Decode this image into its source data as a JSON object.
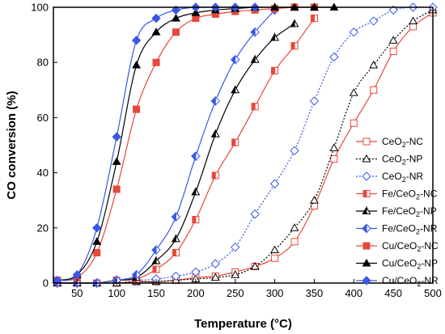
{
  "chart_data": {
    "type": "line",
    "xlabel": "Temperature (°C)",
    "ylabel": "CO conversion (%)",
    "xlim": [
      20,
      500
    ],
    "ylim": [
      0,
      100
    ],
    "xticks": [
      50,
      100,
      150,
      200,
      250,
      300,
      350,
      400,
      450,
      500
    ],
    "yticks": [
      0,
      20,
      40,
      60,
      80,
      100
    ],
    "grid": false,
    "legend_position": "right",
    "series": [
      {
        "name": "CeO2-NC",
        "label_parts": [
          "CeO",
          "2",
          "-NC"
        ],
        "color": "#e8473a",
        "marker": "square",
        "filled": false,
        "line": "solid",
        "x": [
          25,
          50,
          75,
          100,
          125,
          150,
          175,
          200,
          225,
          250,
          275,
          300,
          325,
          350,
          375,
          400,
          425,
          450,
          475,
          500
        ],
        "y": [
          0,
          0,
          0,
          0,
          0.5,
          0.5,
          1,
          2,
          2.5,
          4,
          6,
          9,
          15,
          28,
          45,
          58,
          70,
          84,
          93,
          98
        ]
      },
      {
        "name": "CeO2-NP",
        "label_parts": [
          "CeO",
          "2",
          "-NP"
        ],
        "color": "#000000",
        "marker": "triangle",
        "filled": false,
        "line": "dotted",
        "x": [
          25,
          50,
          75,
          100,
          125,
          150,
          175,
          200,
          225,
          250,
          275,
          300,
          325,
          350,
          375,
          400,
          425,
          450,
          475,
          500
        ],
        "y": [
          0,
          0,
          0,
          0,
          0.5,
          0.5,
          1,
          1.5,
          2,
          3,
          6,
          12,
          20,
          30,
          49,
          69,
          79,
          88,
          95,
          99
        ]
      },
      {
        "name": "CeO2-NR",
        "label_parts": [
          "CeO",
          "2",
          "-NR"
        ],
        "color": "#3a57e8",
        "marker": "diamond",
        "filled": false,
        "line": "dotted",
        "x": [
          25,
          50,
          75,
          100,
          125,
          150,
          175,
          200,
          225,
          250,
          275,
          300,
          325,
          350,
          375,
          400,
          425,
          450,
          475,
          500
        ],
        "y": [
          0,
          0,
          0,
          1,
          1,
          1.5,
          2.5,
          4,
          7,
          13,
          25,
          36,
          48,
          66,
          82,
          91,
          95,
          99,
          100,
          100
        ]
      },
      {
        "name": "Fe/CeO2-NC",
        "label_parts": [
          "Fe/CeO",
          "2",
          "-NC"
        ],
        "color": "#e8473a",
        "marker": "square",
        "filled": "half",
        "line": "solid",
        "x": [
          25,
          50,
          75,
          100,
          125,
          150,
          175,
          200,
          225,
          250,
          275,
          300,
          325,
          350
        ],
        "y": [
          0,
          0,
          0,
          1,
          1.5,
          5,
          11,
          23,
          39,
          51,
          64,
          77,
          86,
          96
        ]
      },
      {
        "name": "Fe/CeO2-NP",
        "label_parts": [
          "Fe/CeO",
          "2",
          "-NP"
        ],
        "color": "#000000",
        "marker": "triangle",
        "filled": "half",
        "line": "solid",
        "x": [
          25,
          50,
          75,
          100,
          125,
          150,
          175,
          200,
          225,
          250,
          275,
          300,
          325
        ],
        "y": [
          0,
          0,
          0,
          1,
          2,
          8,
          16,
          33,
          54,
          70,
          81,
          89,
          94
        ]
      },
      {
        "name": "Fe/CeO2-NR",
        "label_parts": [
          "Fe/CeO",
          "2",
          "-NR"
        ],
        "color": "#3a57e8",
        "marker": "diamond",
        "filled": "half",
        "line": "solid",
        "x": [
          25,
          50,
          75,
          100,
          125,
          150,
          175,
          200,
          225,
          250,
          275,
          300
        ],
        "y": [
          0,
          0,
          0,
          1,
          3,
          12,
          24,
          46,
          66,
          81,
          91,
          99
        ]
      },
      {
        "name": "Cu/CeO2-NC",
        "label_parts": [
          "Cu/CeO",
          "2",
          "-NC"
        ],
        "color": "#e8473a",
        "marker": "square",
        "filled": true,
        "line": "solid",
        "x": [
          25,
          50,
          75,
          100,
          125,
          150,
          175,
          200,
          225,
          250,
          275,
          300,
          325,
          350
        ],
        "y": [
          1,
          2,
          11,
          34,
          63,
          80,
          91,
          96,
          97.5,
          98.5,
          99,
          99.5,
          100,
          100
        ]
      },
      {
        "name": "Cu/CeO2-NP",
        "label_parts": [
          "Cu/CeO",
          "2",
          "-NP"
        ],
        "color": "#000000",
        "marker": "triangle",
        "filled": true,
        "line": "solid",
        "x": [
          25,
          50,
          75,
          100,
          125,
          150,
          175,
          200,
          225,
          250,
          275,
          300,
          325,
          350,
          375
        ],
        "y": [
          1,
          3,
          15,
          44,
          79,
          91,
          96,
          98,
          99,
          99.5,
          100,
          100,
          100,
          100,
          100
        ]
      },
      {
        "name": "Cu/CeO2-NR",
        "label_parts": [
          "Cu/CeO",
          "2",
          "-NR"
        ],
        "color": "#3a57e8",
        "marker": "diamond",
        "filled": true,
        "line": "solid",
        "x": [
          25,
          50,
          75,
          100,
          125,
          150,
          175,
          200,
          225,
          250,
          275
        ],
        "y": [
          1,
          3,
          20,
          53,
          88,
          96,
          99,
          100,
          100,
          100,
          100
        ]
      }
    ]
  }
}
